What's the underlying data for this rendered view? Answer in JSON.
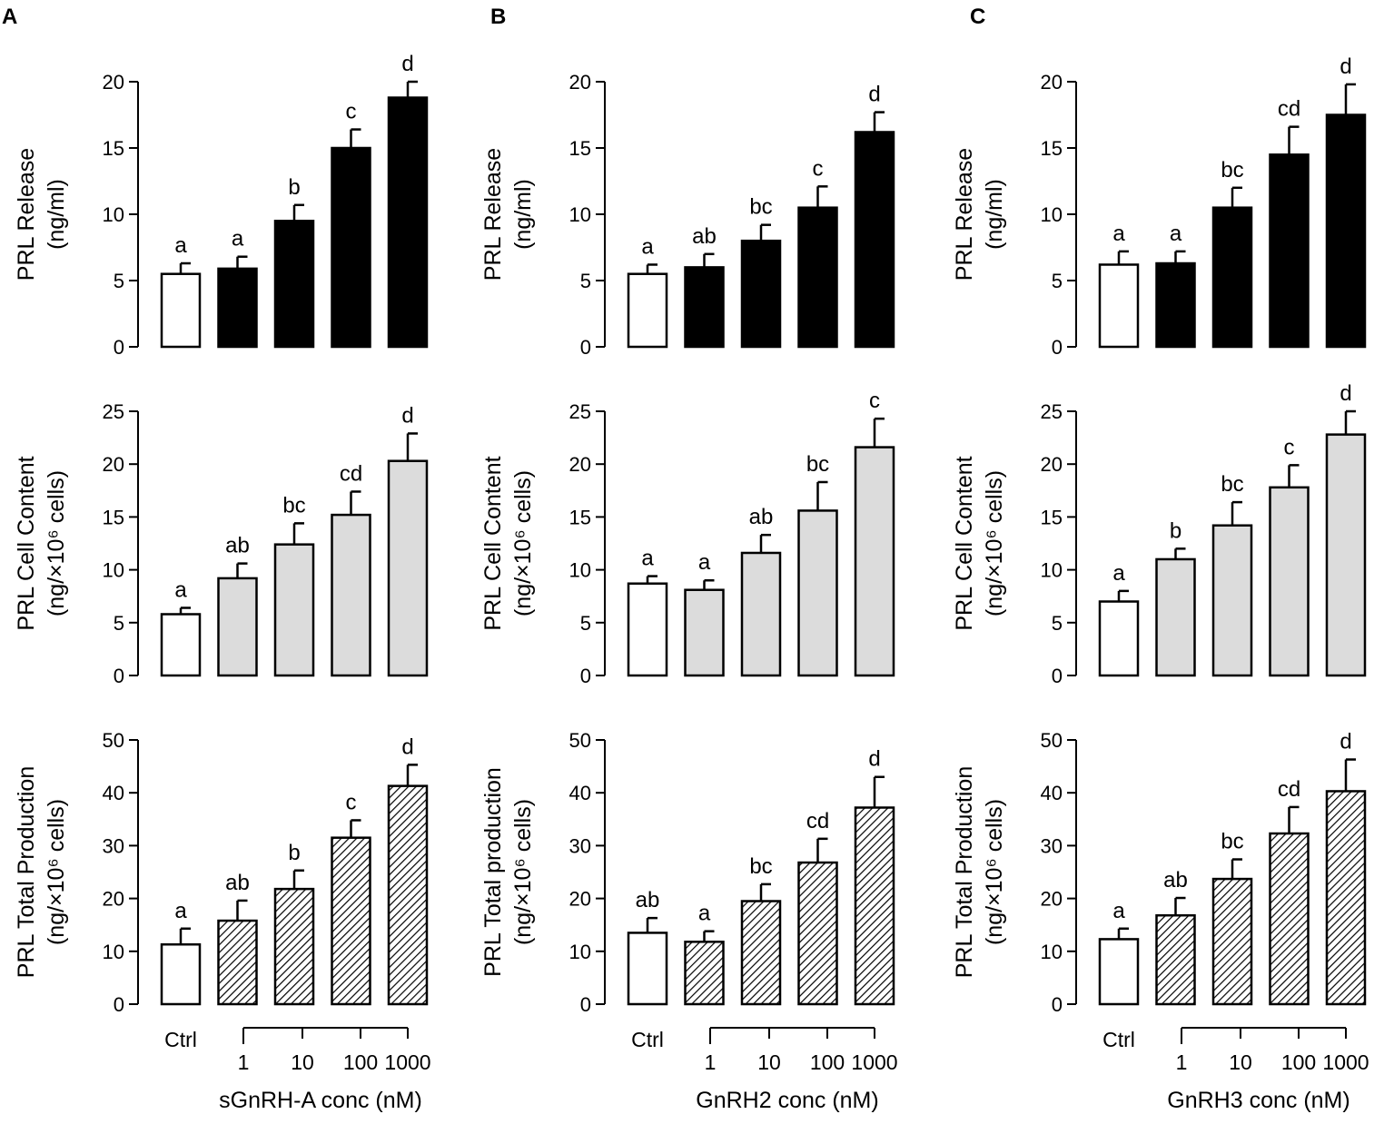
{
  "panels": [
    {
      "letter": "A",
      "ctrl_label": "Ctrl",
      "dose_labels": [
        "1",
        "10",
        "100",
        "1000"
      ],
      "xlabel": "sGnRH-A conc (nM)"
    },
    {
      "letter": "B",
      "ctrl_label": "Ctrl",
      "dose_labels": [
        "1",
        "10",
        "100",
        "1000"
      ],
      "xlabel": "GnRH2 conc (nM)"
    },
    {
      "letter": "C",
      "ctrl_label": "Ctrl",
      "dose_labels": [
        "1",
        "10",
        "100",
        "1000"
      ],
      "xlabel": "GnRH3 conc (nM)"
    }
  ],
  "colors": {
    "control_fill": "#ffffff",
    "release_fill": "#000000",
    "content_fill": "#dcdcdc",
    "production_fill": "hatch",
    "ink": "#000000"
  },
  "chart_data": [
    {
      "type": "bar",
      "panel": "A",
      "row": "release",
      "ylabel_line1": "PRL Release",
      "ylabel_line2": "(ng/ml)",
      "categories": [
        "Ctrl",
        "1",
        "10",
        "100",
        "1000"
      ],
      "values": [
        5.5,
        5.9,
        9.5,
        15.0,
        18.8
      ],
      "errors": [
        0.8,
        0.9,
        1.2,
        1.4,
        1.2
      ],
      "letters": [
        "a",
        "a",
        "b",
        "c",
        "d"
      ],
      "ylim": [
        0,
        20
      ],
      "yticks": [
        "0",
        "5",
        "10",
        "15",
        "20"
      ]
    },
    {
      "type": "bar",
      "panel": "A",
      "row": "content",
      "ylabel_line1": "PRL Cell Content",
      "ylabel_line2": "(ng/×10⁶ cells)",
      "categories": [
        "Ctrl",
        "1",
        "10",
        "100",
        "1000"
      ],
      "values": [
        5.8,
        9.2,
        12.4,
        15.2,
        20.3
      ],
      "errors": [
        0.6,
        1.4,
        2.0,
        2.2,
        2.6
      ],
      "letters": [
        "a",
        "ab",
        "bc",
        "cd",
        "d"
      ],
      "ylim": [
        0,
        25
      ],
      "yticks": [
        "0",
        "5",
        "10",
        "15",
        "20",
        "25"
      ]
    },
    {
      "type": "bar",
      "panel": "A",
      "row": "production",
      "ylabel_line1": "PRL Total Production",
      "ylabel_line2": "(ng/×10⁶ cells)",
      "categories": [
        "Ctrl",
        "1",
        "10",
        "100",
        "1000"
      ],
      "values": [
        11.3,
        15.8,
        21.8,
        31.5,
        41.3
      ],
      "errors": [
        3.0,
        3.8,
        3.5,
        3.3,
        4.0
      ],
      "letters": [
        "a",
        "ab",
        "b",
        "c",
        "d"
      ],
      "ylim": [
        0,
        50
      ],
      "yticks": [
        "0",
        "10",
        "20",
        "30",
        "40",
        "50"
      ]
    },
    {
      "type": "bar",
      "panel": "B",
      "row": "release",
      "ylabel_line1": "PRL Release",
      "ylabel_line2": "(ng/ml)",
      "categories": [
        "Ctrl",
        "1",
        "10",
        "100",
        "1000"
      ],
      "values": [
        5.5,
        6.0,
        8.0,
        10.5,
        16.2
      ],
      "errors": [
        0.7,
        1.0,
        1.2,
        1.6,
        1.5
      ],
      "letters": [
        "a",
        "ab",
        "bc",
        "c",
        "d"
      ],
      "ylim": [
        0,
        20
      ],
      "yticks": [
        "0",
        "5",
        "10",
        "15",
        "20"
      ]
    },
    {
      "type": "bar",
      "panel": "B",
      "row": "content",
      "ylabel_line1": "PRL Cell Content",
      "ylabel_line2": "(ng/×10⁶ cells)",
      "categories": [
        "Ctrl",
        "1",
        "10",
        "100",
        "1000"
      ],
      "values": [
        8.7,
        8.1,
        11.6,
        15.6,
        21.6
      ],
      "errors": [
        0.7,
        0.9,
        1.7,
        2.7,
        2.7
      ],
      "letters": [
        "a",
        "a",
        "ab",
        "bc",
        "c"
      ],
      "ylim": [
        0,
        25
      ],
      "yticks": [
        "0",
        "5",
        "10",
        "15",
        "20",
        "25"
      ]
    },
    {
      "type": "bar",
      "panel": "B",
      "row": "production",
      "ylabel_line1": "PRL Total production",
      "ylabel_line2": "(ng/×10⁶ cells)",
      "categories": [
        "Ctrl",
        "1",
        "10",
        "100",
        "1000"
      ],
      "values": [
        13.5,
        11.8,
        19.5,
        26.8,
        37.2
      ],
      "errors": [
        2.8,
        2.0,
        3.2,
        4.5,
        5.8
      ],
      "letters": [
        "ab",
        "a",
        "bc",
        "cd",
        "d"
      ],
      "ylim": [
        0,
        50
      ],
      "yticks": [
        "0",
        "10",
        "20",
        "30",
        "40",
        "50"
      ]
    },
    {
      "type": "bar",
      "panel": "C",
      "row": "release",
      "ylabel_line1": "PRL Release",
      "ylabel_line2": "(ng/ml)",
      "categories": [
        "Ctrl",
        "1",
        "10",
        "100",
        "1000"
      ],
      "values": [
        6.2,
        6.3,
        10.5,
        14.5,
        17.5
      ],
      "errors": [
        1.0,
        0.9,
        1.5,
        2.1,
        2.3
      ],
      "letters": [
        "a",
        "a",
        "bc",
        "cd",
        "d"
      ],
      "ylim": [
        0,
        20
      ],
      "yticks": [
        "0",
        "5",
        "10",
        "15",
        "20"
      ]
    },
    {
      "type": "bar",
      "panel": "C",
      "row": "content",
      "ylabel_line1": "PRL Cell Content",
      "ylabel_line2": "(ng/×10⁶ cells)",
      "categories": [
        "Ctrl",
        "1",
        "10",
        "100",
        "1000"
      ],
      "values": [
        7.0,
        11.0,
        14.2,
        17.8,
        22.8
      ],
      "errors": [
        1.0,
        1.0,
        2.2,
        2.1,
        2.2
      ],
      "letters": [
        "a",
        "b",
        "bc",
        "c",
        "d"
      ],
      "ylim": [
        0,
        25
      ],
      "yticks": [
        "0",
        "5",
        "10",
        "15",
        "20",
        "25"
      ]
    },
    {
      "type": "bar",
      "panel": "C",
      "row": "production",
      "ylabel_line1": "PRL Total Production",
      "ylabel_line2": "(ng/×10⁶ cells)",
      "categories": [
        "Ctrl",
        "1",
        "10",
        "100",
        "1000"
      ],
      "values": [
        12.3,
        16.8,
        23.7,
        32.3,
        40.3
      ],
      "errors": [
        2.0,
        3.3,
        3.7,
        5.0,
        6.0
      ],
      "letters": [
        "a",
        "ab",
        "bc",
        "cd",
        "d"
      ],
      "ylim": [
        0,
        50
      ],
      "yticks": [
        "0",
        "10",
        "20",
        "30",
        "40",
        "50"
      ]
    }
  ]
}
